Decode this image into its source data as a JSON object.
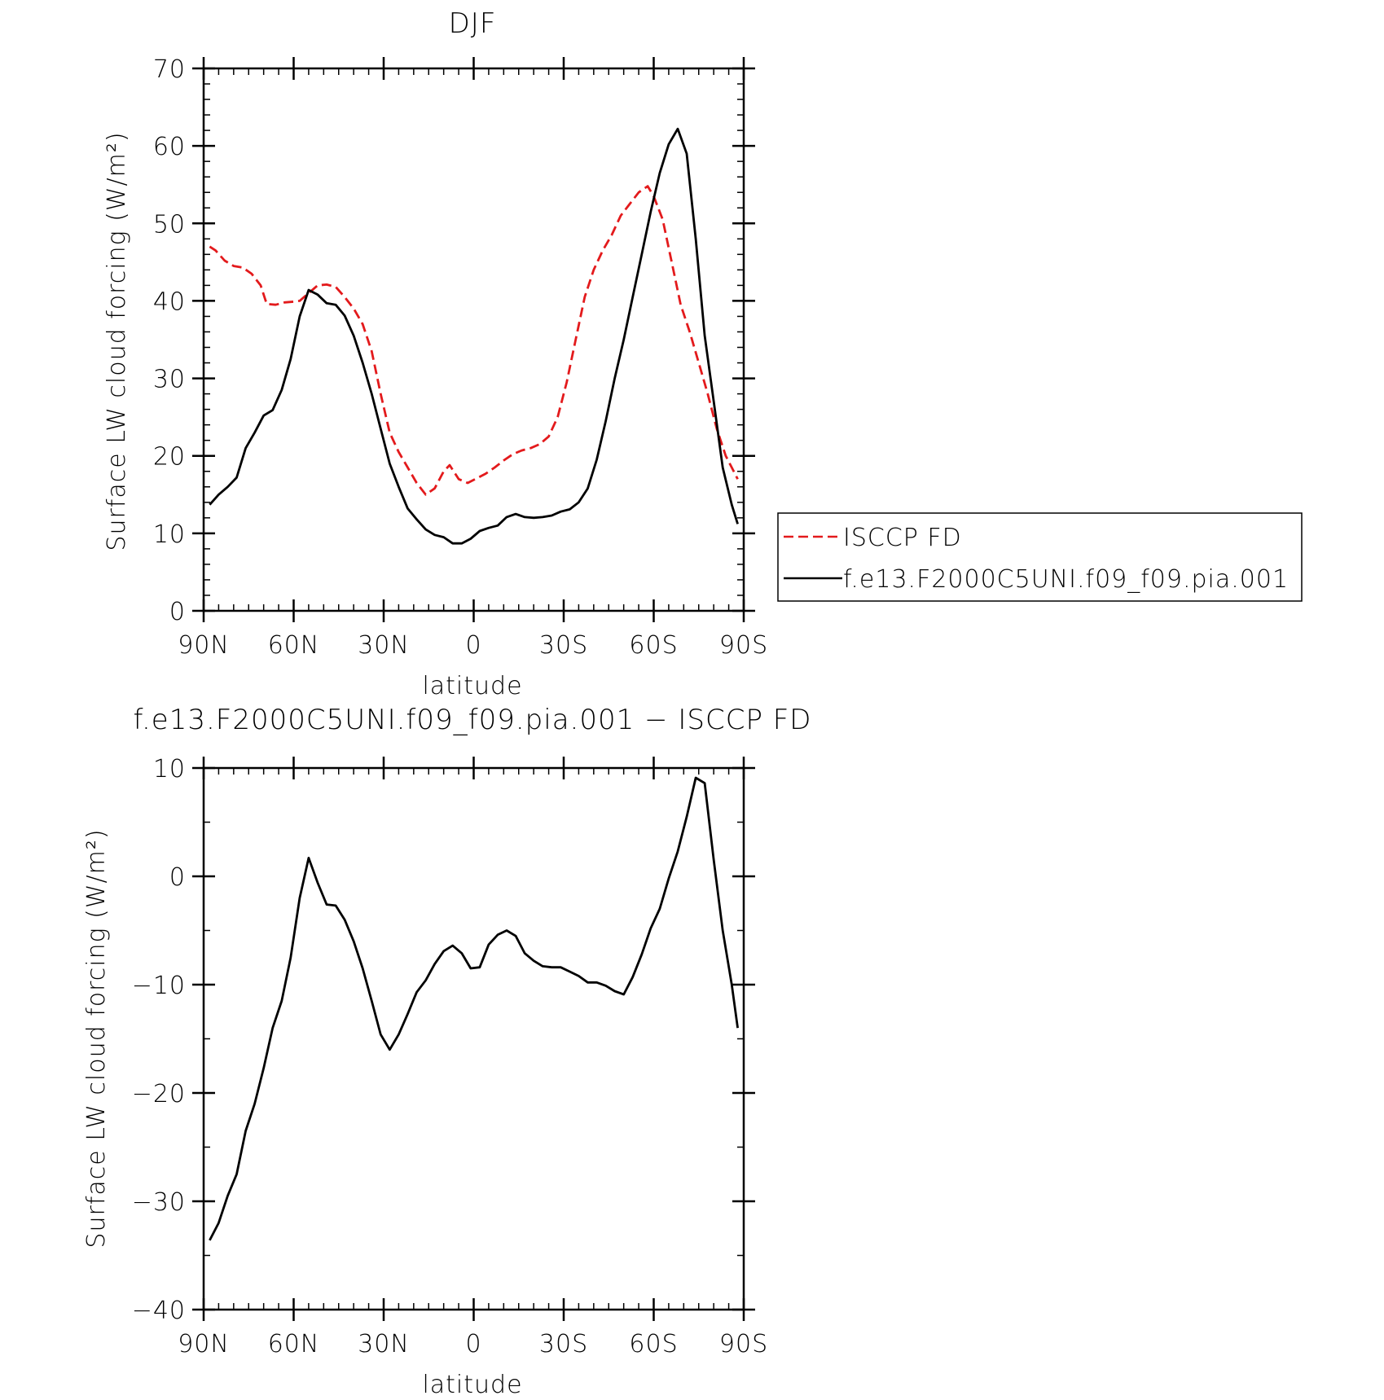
{
  "chart_data": [
    {
      "type": "line",
      "title": "DJF",
      "xlabel": "latitude",
      "ylabel": "Surface LW cloud forcing (W/m²)",
      "xlim": [
        90,
        -90
      ],
      "ylim": [
        0,
        70
      ],
      "x_ticks": [
        90,
        60,
        30,
        0,
        -30,
        -60,
        -90
      ],
      "x_tick_labels": [
        "90N",
        "60N",
        "30N",
        "0",
        "30S",
        "60S",
        "90S"
      ],
      "y_ticks": [
        0,
        10,
        20,
        30,
        40,
        50,
        60,
        70
      ],
      "y_tick_labels": [
        "0",
        "10",
        "20",
        "30",
        "40",
        "50",
        "60",
        "70"
      ],
      "legend": {
        "placement": "right",
        "entries": [
          "ISCCP FD",
          "f.e13.F2000C5UNI.f09_f09.pia.001"
        ]
      },
      "series": [
        {
          "name": "ISCCP FD",
          "color": "#e31a1c",
          "dash": "dashed",
          "x": [
            88,
            86,
            83,
            80,
            77,
            74,
            71,
            69,
            66,
            63,
            60,
            58,
            55,
            52,
            49,
            46,
            43,
            40,
            37,
            34,
            31,
            28,
            25,
            22,
            19,
            16,
            13,
            10,
            8,
            5,
            2,
            -1,
            -4,
            -7,
            -10,
            -13,
            -16,
            -19,
            -22,
            -25,
            -28,
            -31,
            -34,
            -37,
            -40,
            -43,
            -46,
            -49,
            -52,
            -55,
            -58,
            -60,
            -63,
            -66,
            -69,
            -72,
            -75,
            -78,
            -81,
            -84,
            -86,
            -88
          ],
          "y": [
            47,
            46.5,
            45.2,
            44.5,
            44.3,
            43.5,
            42,
            39.6,
            39.5,
            39.8,
            39.9,
            40,
            41,
            42,
            42.1,
            41.8,
            40.5,
            39,
            37,
            33.5,
            28,
            23,
            20.5,
            18.5,
            16.5,
            15,
            15.8,
            18,
            18.8,
            17,
            16.5,
            17.1,
            17.7,
            18.5,
            19.4,
            20.2,
            20.7,
            21,
            21.5,
            22.5,
            25,
            29.5,
            35,
            40.5,
            44,
            46.5,
            48.5,
            51,
            52.5,
            54,
            54.8,
            53.5,
            50.5,
            45,
            39.5,
            36,
            32,
            28,
            23.5,
            20,
            18.5,
            17
          ]
        },
        {
          "name": "f.e13.F2000C5UNI.f09_f09.pia.001",
          "color": "#000000",
          "dash": "solid",
          "x": [
            88,
            85,
            82,
            79,
            76,
            73,
            70,
            67,
            64,
            61,
            58,
            55,
            52,
            49,
            46,
            43,
            40,
            37,
            34,
            31,
            28,
            25,
            22,
            19,
            16,
            13,
            10,
            7,
            4,
            1,
            -2,
            -5,
            -8,
            -11,
            -14,
            -17,
            -20,
            -23,
            -26,
            -29,
            -32,
            -35,
            -38,
            -41,
            -44,
            -47,
            -50,
            -53,
            -56,
            -59,
            -62,
            -65,
            -68,
            -71,
            -74,
            -77,
            -80,
            -83,
            -86,
            -88
          ],
          "y": [
            13.7,
            15,
            16,
            17.2,
            21,
            23,
            25.2,
            25.9,
            28.5,
            32.5,
            38,
            41.4,
            40.8,
            39.7,
            39.5,
            38.1,
            35.5,
            32,
            28,
            23.5,
            19,
            16,
            13.2,
            11.8,
            10.5,
            9.8,
            9.5,
            8.7,
            8.7,
            9.3,
            10.3,
            10.7,
            11,
            12.1,
            12.5,
            12.1,
            12,
            12.1,
            12.3,
            12.8,
            13.1,
            14,
            15.8,
            19.5,
            24.5,
            30,
            35,
            40.5,
            46,
            51.5,
            56.5,
            60.2,
            62.2,
            59,
            48,
            35.5,
            27,
            18.5,
            13.7,
            11.2
          ]
        }
      ]
    },
    {
      "type": "line",
      "title": "f.e13.F2000C5UNI.f09_f09.pia.001 − ISCCP FD",
      "xlabel": "latitude",
      "ylabel": "Surface LW cloud forcing (W/m²)",
      "xlim": [
        90,
        -90
      ],
      "ylim": [
        -40,
        10
      ],
      "x_ticks": [
        90,
        60,
        30,
        0,
        -30,
        -60,
        -90
      ],
      "x_tick_labels": [
        "90N",
        "60N",
        "30N",
        "0",
        "30S",
        "60S",
        "90S"
      ],
      "y_ticks": [
        10,
        0,
        -10,
        -20,
        -30,
        -40
      ],
      "y_tick_labels": [
        "10",
        "0",
        "−10",
        "−20",
        "−30",
        "−40"
      ],
      "series": [
        {
          "color": "#000000",
          "dash": "solid",
          "x": [
            88,
            85,
            82,
            79,
            76,
            73,
            70,
            67,
            64,
            61,
            58,
            55,
            52,
            49,
            46,
            43,
            40,
            37,
            34,
            31,
            28,
            25,
            22,
            19,
            16,
            13,
            10,
            7,
            4,
            1,
            -2,
            -5,
            -8,
            -11,
            -14,
            -17,
            -20,
            -23,
            -26,
            -29,
            -32,
            -35,
            -38,
            -41,
            -44,
            -47,
            -50,
            -53,
            -56,
            -59,
            -62,
            -65,
            -68,
            -71,
            -74,
            -77,
            -80,
            -83,
            -86,
            -88
          ],
          "y": [
            -33.6,
            -32,
            -29.5,
            -27.5,
            -23.5,
            -21,
            -17.7,
            -14,
            -11.5,
            -7.5,
            -2,
            1.7,
            -0.6,
            -2.6,
            -2.7,
            -4,
            -6,
            -8.5,
            -11.5,
            -14.6,
            -16,
            -14.6,
            -12.7,
            -10.7,
            -9.6,
            -8.1,
            -6.9,
            -6.4,
            -7.1,
            -8.5,
            -8.4,
            -6.3,
            -5.4,
            -5,
            -5.5,
            -7.1,
            -7.8,
            -8.3,
            -8.4,
            -8.4,
            -8.8,
            -9.2,
            -9.8,
            -9.8,
            -10.1,
            -10.6,
            -10.9,
            -9.3,
            -7.2,
            -4.8,
            -3,
            -0.2,
            2.3,
            5.5,
            9.1,
            8.6,
            1.5,
            -5,
            -10,
            -14
          ]
        }
      ]
    }
  ]
}
